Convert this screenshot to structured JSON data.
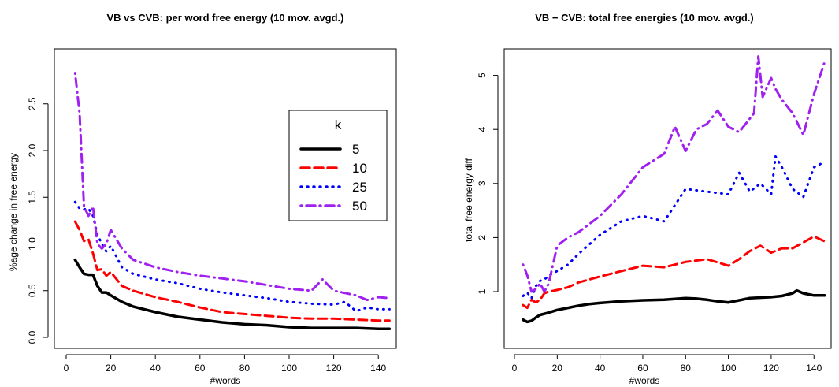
{
  "chart_data": [
    {
      "type": "line",
      "title": "VB vs CVB: per word free energy (10 mov. avgd.)",
      "xlabel": "#words",
      "ylabel": "%age change in free energy",
      "xlim": [
        0,
        150
      ],
      "ylim": [
        0,
        2.85
      ],
      "xticks": [
        0,
        20,
        40,
        60,
        80,
        100,
        120,
        140
      ],
      "yticks": [
        0.0,
        0.5,
        1.0,
        1.5,
        2.0,
        2.5
      ],
      "ytick_labels": [
        "0.0",
        "0.5",
        "1.0",
        "1.5",
        "2.0",
        "2.5"
      ],
      "grid": false,
      "legend": {
        "title": "k",
        "placement": "center-right"
      },
      "series": [
        {
          "name": "5",
          "color": "#000000",
          "dash": "solid",
          "x": [
            4,
            6,
            8,
            10,
            12,
            14,
            16,
            18,
            20,
            25,
            30,
            40,
            50,
            60,
            70,
            80,
            90,
            100,
            110,
            120,
            130,
            140,
            145
          ],
          "y": [
            0.83,
            0.75,
            0.68,
            0.67,
            0.67,
            0.55,
            0.48,
            0.48,
            0.45,
            0.38,
            0.33,
            0.27,
            0.22,
            0.19,
            0.16,
            0.14,
            0.13,
            0.11,
            0.1,
            0.1,
            0.1,
            0.09,
            0.09
          ]
        },
        {
          "name": "10",
          "color": "#ff0000",
          "dash": "dashed",
          "x": [
            4,
            6,
            8,
            10,
            12,
            14,
            16,
            18,
            20,
            25,
            30,
            40,
            50,
            60,
            70,
            80,
            90,
            100,
            110,
            120,
            130,
            140,
            145
          ],
          "y": [
            1.24,
            1.15,
            1.03,
            1.05,
            0.9,
            0.72,
            0.73,
            0.66,
            0.7,
            0.55,
            0.5,
            0.43,
            0.38,
            0.32,
            0.27,
            0.25,
            0.23,
            0.21,
            0.2,
            0.2,
            0.19,
            0.18,
            0.18
          ]
        },
        {
          "name": "25",
          "color": "#0000ff",
          "dash": "dotted",
          "x": [
            4,
            6,
            8,
            10,
            12,
            14,
            16,
            18,
            20,
            25,
            30,
            40,
            50,
            60,
            70,
            80,
            90,
            100,
            110,
            120,
            125,
            130,
            135,
            140,
            145
          ],
          "y": [
            1.45,
            1.38,
            1.37,
            1.38,
            1.3,
            1.1,
            1.0,
            0.92,
            0.98,
            0.75,
            0.68,
            0.62,
            0.58,
            0.52,
            0.48,
            0.45,
            0.42,
            0.38,
            0.36,
            0.35,
            0.38,
            0.28,
            0.32,
            0.3,
            0.3
          ]
        },
        {
          "name": "50",
          "color": "#a020f0",
          "dash": "dotdash",
          "x": [
            4,
            6,
            8,
            10,
            12,
            14,
            16,
            18,
            20,
            25,
            30,
            40,
            50,
            60,
            70,
            80,
            90,
            100,
            110,
            115,
            120,
            130,
            135,
            140,
            145
          ],
          "y": [
            2.83,
            2.4,
            1.4,
            1.3,
            1.4,
            1.0,
            0.95,
            1.0,
            1.15,
            0.95,
            0.83,
            0.75,
            0.7,
            0.66,
            0.63,
            0.6,
            0.56,
            0.52,
            0.5,
            0.62,
            0.5,
            0.45,
            0.4,
            0.43,
            0.42
          ]
        }
      ]
    },
    {
      "type": "line",
      "title": "VB − CVB: total free energies (10 mov. avgd.)",
      "xlabel": "#words",
      "ylabel": "total free energy diff",
      "xlim": [
        0,
        150
      ],
      "ylim": [
        0.26,
        5.45
      ],
      "xticks": [
        0,
        20,
        40,
        60,
        80,
        100,
        120,
        140
      ],
      "yticks": [
        1,
        2,
        3,
        4,
        5
      ],
      "ytick_labels": [
        "1",
        "2",
        "3",
        "4",
        "5"
      ],
      "grid": false,
      "series": [
        {
          "name": "5",
          "color": "#000000",
          "dash": "solid",
          "x": [
            4,
            6,
            8,
            10,
            12,
            15,
            20,
            25,
            30,
            35,
            40,
            50,
            60,
            70,
            80,
            85,
            90,
            95,
            100,
            105,
            110,
            120,
            125,
            130,
            132,
            135,
            140,
            145
          ],
          "y": [
            0.48,
            0.44,
            0.46,
            0.52,
            0.57,
            0.6,
            0.66,
            0.7,
            0.74,
            0.77,
            0.79,
            0.82,
            0.84,
            0.85,
            0.88,
            0.87,
            0.85,
            0.82,
            0.8,
            0.84,
            0.88,
            0.9,
            0.92,
            0.97,
            1.02,
            0.97,
            0.93,
            0.93
          ]
        },
        {
          "name": "10",
          "color": "#ff0000",
          "dash": "dashed",
          "x": [
            4,
            6,
            8,
            10,
            12,
            14,
            16,
            20,
            25,
            30,
            40,
            50,
            60,
            70,
            80,
            90,
            100,
            105,
            110,
            115,
            120,
            125,
            130,
            140,
            145
          ],
          "y": [
            0.75,
            0.7,
            0.85,
            0.8,
            0.85,
            0.97,
            1.0,
            1.03,
            1.08,
            1.17,
            1.28,
            1.38,
            1.48,
            1.45,
            1.55,
            1.6,
            1.48,
            1.6,
            1.75,
            1.85,
            1.72,
            1.8,
            1.8,
            2.02,
            1.93
          ]
        },
        {
          "name": "25",
          "color": "#0000ff",
          "dash": "dotted",
          "x": [
            4,
            6,
            8,
            10,
            12,
            14,
            16,
            20,
            25,
            30,
            40,
            50,
            60,
            70,
            80,
            90,
            100,
            105,
            110,
            115,
            120,
            122,
            125,
            130,
            135,
            140,
            145
          ],
          "y": [
            0.92,
            0.98,
            0.88,
            1.1,
            1.2,
            1.22,
            1.3,
            1.38,
            1.5,
            1.7,
            2.05,
            2.3,
            2.4,
            2.3,
            2.9,
            2.85,
            2.8,
            3.2,
            2.85,
            3.0,
            2.8,
            3.5,
            3.3,
            2.9,
            2.75,
            3.3,
            3.4
          ]
        },
        {
          "name": "50",
          "color": "#a020f0",
          "dash": "dotdash",
          "x": [
            4,
            6,
            8,
            10,
            12,
            14,
            16,
            20,
            25,
            30,
            40,
            50,
            60,
            70,
            75,
            80,
            85,
            90,
            95,
            100,
            105,
            110,
            112,
            114,
            116,
            120,
            122,
            125,
            130,
            135,
            140,
            145
          ],
          "y": [
            1.5,
            1.3,
            1.0,
            1.05,
            1.15,
            1.0,
            1.15,
            1.85,
            2.0,
            2.1,
            2.4,
            2.8,
            3.3,
            3.55,
            4.05,
            3.6,
            4.0,
            4.1,
            4.35,
            4.05,
            3.95,
            4.2,
            4.3,
            5.35,
            4.6,
            4.95,
            4.75,
            4.55,
            4.3,
            3.9,
            4.65,
            5.25
          ]
        }
      ]
    }
  ]
}
